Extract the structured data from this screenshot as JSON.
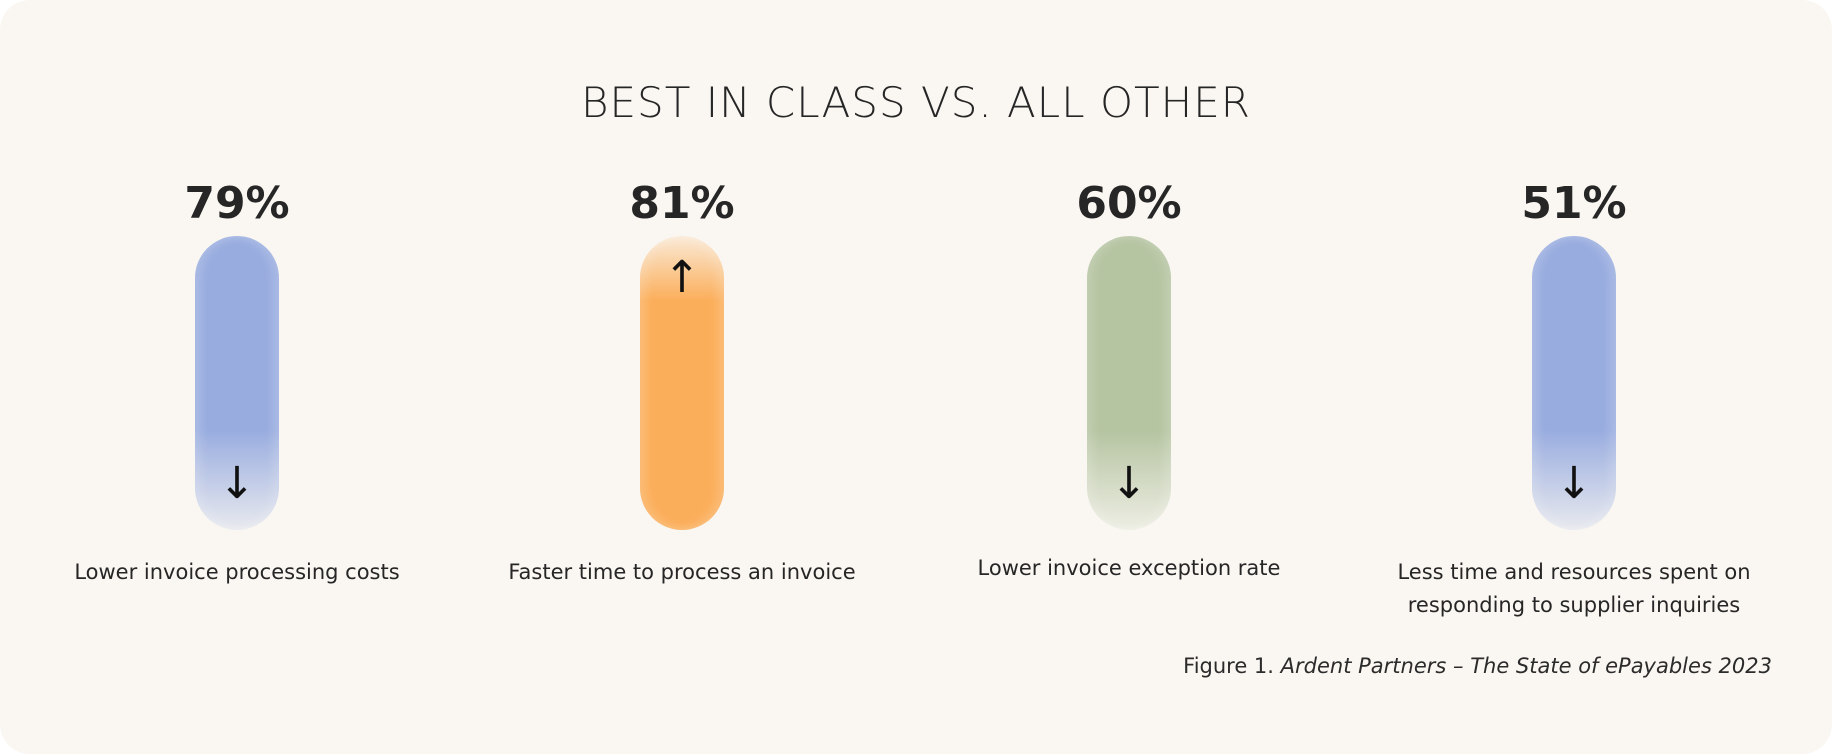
{
  "chart_data": {
    "type": "bar",
    "title": "BEST IN CLASS VS. ALL OTHER",
    "categories": [
      "Lower invoice processing costs",
      "Faster time to process an invoice",
      "Lower invoice exception rate",
      "Less time and resources spent on responding to supplier inquiries"
    ],
    "values": [
      79,
      81,
      60,
      51
    ],
    "value_labels": [
      "79%",
      "81%",
      "60%",
      "51%"
    ],
    "directions": [
      "down",
      "up",
      "down",
      "down"
    ],
    "colors": [
      "#98acdf",
      "#fbae5a",
      "#b5c4a1",
      "#98acdf"
    ],
    "label_lines": [
      [
        "Lower invoice processing costs"
      ],
      [
        "Faster time to process an invoice"
      ],
      [
        "Lower invoice exception rate"
      ],
      [
        "Less time and resources spent on",
        "responding to supplier inquiries"
      ]
    ]
  },
  "caption": {
    "prefix": "Figure 1.",
    "source": "Ardent Partners – The State of ePayables 2023"
  }
}
